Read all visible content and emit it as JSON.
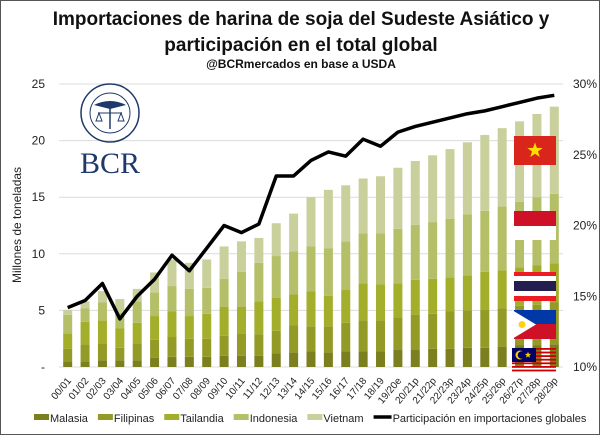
{
  "chart_data": {
    "type": "bar",
    "title": "Importaciones de harina de soja del Sudeste Asiático y participación en el total global",
    "title_lines": [
      "Importaciones de harina de soja del Sudeste Asiático y",
      "participación en el total global"
    ],
    "subtitle": "@BCRmercados  en base a USDA",
    "ylabel": "Millones de toneladas",
    "ylim": [
      0,
      25
    ],
    "yticks": [
      "-",
      "5",
      "10",
      "15",
      "20",
      "25"
    ],
    "y2lim": [
      10,
      30
    ],
    "y2ticks": [
      "10%",
      "15%",
      "20%",
      "25%",
      "30%"
    ],
    "grid": true,
    "legend_position": "bottom",
    "stacked": true,
    "categories": [
      "00/01",
      "01/02",
      "02/03",
      "03/04",
      "04/05",
      "05/06",
      "06/07",
      "07/08",
      "08/09",
      "09/10",
      "10/11",
      "11/12",
      "12/13",
      "13/14",
      "14/15",
      "15/16",
      "16/17",
      "17/18",
      "18/19",
      "19/20e",
      "20/21p",
      "21/22p",
      "22/23p",
      "23/24p",
      "24/25p",
      "25/26p",
      "26/27p",
      "27/28p",
      "28/29p"
    ],
    "series": [
      {
        "name": "Malasia",
        "color": "#7b7f1e",
        "values": [
          0.5,
          0.5,
          0.6,
          0.6,
          0.6,
          0.8,
          0.9,
          0.9,
          0.9,
          1.0,
          1.0,
          1.0,
          1.2,
          1.3,
          1.4,
          1.3,
          1.4,
          1.4,
          1.4,
          1.5,
          1.5,
          1.6,
          1.6,
          1.7,
          1.7,
          1.8,
          1.9,
          1.9,
          2.0
        ]
      },
      {
        "name": "Filipinas",
        "color": "#939a26",
        "values": [
          1.1,
          1.5,
          1.5,
          1.1,
          1.5,
          1.6,
          1.75,
          1.6,
          1.6,
          1.75,
          1.95,
          1.9,
          2.0,
          2.4,
          2.2,
          2.3,
          2.5,
          2.7,
          2.7,
          2.9,
          3.1,
          3.1,
          3.3,
          3.3,
          3.4,
          3.4,
          3.5,
          3.6,
          3.7
        ]
      },
      {
        "name": "Tailandia",
        "color": "#a3ae2a",
        "values": [
          1.35,
          2.0,
          2.0,
          1.7,
          1.8,
          2.1,
          2.25,
          2.0,
          2.2,
          2.55,
          2.35,
          2.9,
          2.9,
          2.7,
          3.1,
          2.7,
          2.9,
          3.3,
          3.2,
          3.0,
          3.1,
          3.1,
          3.0,
          3.1,
          3.3,
          3.35,
          3.4,
          3.5,
          3.45
        ]
      },
      {
        "name": "Indonesia",
        "color": "#b4bf67",
        "values": [
          1.65,
          1.2,
          1.6,
          1.4,
          1.9,
          2.1,
          2.25,
          2.4,
          2.3,
          2.5,
          3.1,
          3.4,
          3.7,
          3.8,
          3.95,
          4.2,
          4.3,
          4.4,
          4.5,
          4.8,
          4.85,
          5.0,
          5.2,
          5.4,
          5.4,
          5.65,
          5.8,
          6.0,
          6.15
        ]
      },
      {
        "name": "Vietnam",
        "color": "#c9d09c",
        "values": [
          0.45,
          0.6,
          1.0,
          1.2,
          1.1,
          1.75,
          2.35,
          2.3,
          2.5,
          2.85,
          2.7,
          2.2,
          2.9,
          3.35,
          4.35,
          5.15,
          4.95,
          4.85,
          5.05,
          5.4,
          5.65,
          5.9,
          6.15,
          6.35,
          6.7,
          6.9,
          7.1,
          7.35,
          7.7
        ]
      }
    ],
    "line": {
      "name": "Participación en importaciones globales",
      "color": "#000000",
      "axis": "right",
      "unit": "%",
      "values": [
        14.2,
        14.7,
        15.9,
        13.4,
        15.0,
        16.2,
        17.9,
        16.8,
        18.4,
        20.0,
        19.5,
        20.1,
        23.5,
        23.5,
        24.6,
        25.2,
        24.9,
        26.1,
        25.6,
        26.6,
        27.0,
        27.3,
        27.6,
        27.9,
        28.1,
        28.4,
        28.7,
        29.0,
        29.2
      ]
    }
  },
  "logo": {
    "seal_text": "BOLSA DE COMERCIO DE ROSARIO",
    "wordmark": "BCR",
    "color": "#1e3a6a"
  },
  "flags": [
    "vietnam-flag",
    "indonesia-flag",
    "thailand-flag",
    "philippines-flag",
    "malaysia-flag"
  ]
}
